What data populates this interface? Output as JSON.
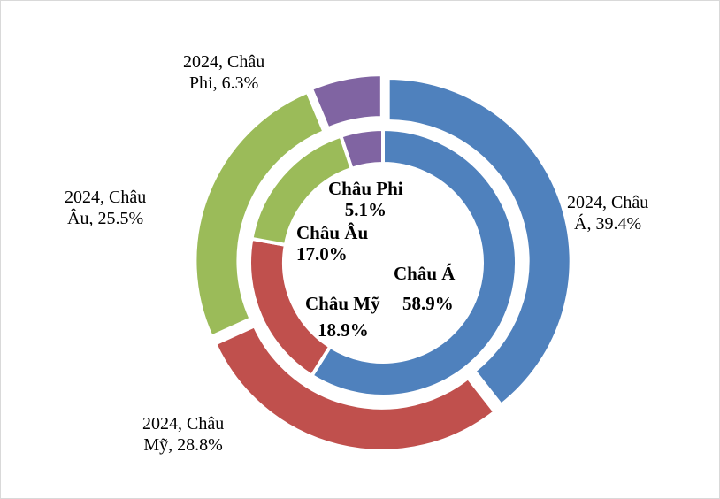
{
  "chart_data": {
    "type": "pie",
    "subtype": "double-donut",
    "start_angle": "top",
    "direction": "clockwise",
    "categories": [
      "Châu Á",
      "Châu Mỹ",
      "Châu Âu",
      "Châu Phi"
    ],
    "colors": [
      "#4F81BD",
      "#C0504D",
      "#9BBB59",
      "#8064A2"
    ],
    "series": [
      {
        "ring": "outer",
        "name": "2024",
        "values": [
          39.4,
          28.8,
          25.5,
          6.3
        ],
        "labels": [
          "2024, Châu Á, 39.4%",
          "2024, Châu Mỹ, 28.8%",
          "2024, Châu Âu, 25.5%",
          "2024, Châu Phi, 6.3%"
        ]
      },
      {
        "ring": "inner",
        "values": [
          58.9,
          18.9,
          17.0,
          5.1
        ],
        "labels": [
          "Châu Á 58.9%",
          "Châu Mỹ 18.9%",
          "Châu Âu 17.0%",
          "Châu Phi 5.1%"
        ]
      }
    ],
    "label_lines": {
      "outer": [
        [
          "2024, Châu",
          "Á, 39.4%"
        ],
        [
          "2024, Châu",
          "Mỹ, 28.8%"
        ],
        [
          "2024, Châu",
          "Âu, 25.5%"
        ],
        [
          "2024, Châu",
          "Phi, 6.3%"
        ]
      ],
      "inner": [
        [
          "Châu Á",
          "58.9%"
        ],
        [
          "Châu Mỹ",
          "18.9%"
        ],
        [
          "Châu Âu",
          "17.0%"
        ],
        [
          "Châu Phi",
          "5.1%"
        ]
      ]
    }
  }
}
